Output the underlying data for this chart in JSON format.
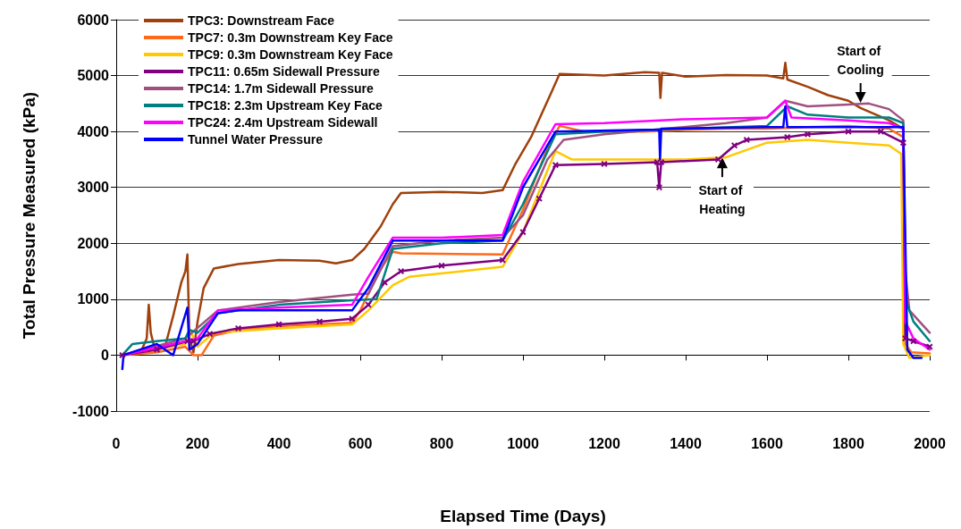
{
  "chart_data": {
    "type": "line",
    "xlabel": "Elapsed Time (Days)",
    "ylabel": "Total Pressure Measured (kPa)",
    "xlim": [
      0,
      2000
    ],
    "xticks": [
      0,
      200,
      400,
      600,
      800,
      1000,
      1200,
      1400,
      1600,
      1800,
      2000
    ],
    "ylim": [
      -1000,
      6000
    ],
    "yticks": [
      -1000,
      0,
      1000,
      2000,
      3000,
      4000,
      5000,
      6000
    ],
    "grid": "y",
    "legend": "top left",
    "marker": "none",
    "line_style": "solid",
    "annotations": [
      {
        "text": "Start of Cooling",
        "x": 1830,
        "y": 4450
      },
      {
        "text": "Start of Heating",
        "x": 1490,
        "y": 3600
      }
    ],
    "series": [
      {
        "name": "TPC3: Downstream Face",
        "color": "#a0400c",
        "x": [
          15,
          60,
          75,
          80,
          85,
          95,
          120,
          140,
          160,
          170,
          175,
          180,
          190,
          200,
          215,
          240,
          300,
          400,
          500,
          540,
          580,
          610,
          650,
          680,
          700,
          800,
          900,
          950,
          980,
          1020,
          1070,
          1090,
          1200,
          1300,
          1335,
          1338,
          1342,
          1400,
          1500,
          1600,
          1640,
          1645,
          1650,
          1700,
          1750,
          1800,
          1830,
          1900,
          1935
        ],
        "values": [
          0,
          50,
          300,
          900,
          400,
          100,
          150,
          700,
          1300,
          1500,
          1800,
          300,
          50,
          600,
          1200,
          1550,
          1630,
          1700,
          1690,
          1640,
          1700,
          1900,
          2300,
          2700,
          2900,
          2920,
          2900,
          2950,
          3400,
          3900,
          4700,
          5030,
          5000,
          5060,
          5050,
          4600,
          5050,
          4980,
          5010,
          5000,
          4950,
          5230,
          4930,
          4800,
          4650,
          4550,
          4420,
          4200,
          4050
        ]
      },
      {
        "name": "TPC7: 0.3m Downstream Key Face",
        "color": "#ff6a1a",
        "x": [
          15,
          100,
          170,
          190,
          210,
          240,
          300,
          400,
          500,
          580,
          600,
          650,
          680,
          700,
          950,
          1000,
          1060,
          1090,
          1150,
          1300,
          1400,
          1500,
          1600,
          1700,
          1800,
          1900,
          1935,
          1940,
          1955,
          2000
        ],
        "values": [
          0,
          50,
          150,
          0,
          0,
          350,
          450,
          520,
          550,
          580,
          800,
          1550,
          1850,
          1820,
          1800,
          2600,
          3700,
          4100,
          4000,
          4000,
          4030,
          4050,
          4050,
          4080,
          4100,
          4050,
          3900,
          200,
          50,
          30
        ]
      },
      {
        "name": "TPC9: 0.3m Downstream Key Face",
        "color": "#ffc800",
        "x": [
          15,
          170,
          185,
          200,
          240,
          300,
          400,
          500,
          580,
          620,
          680,
          720,
          950,
          1000,
          1060,
          1080,
          1120,
          1300,
          1400,
          1500,
          1600,
          1700,
          1800,
          1900,
          1930,
          1935,
          1950,
          2000
        ],
        "values": [
          0,
          200,
          400,
          150,
          400,
          430,
          480,
          520,
          550,
          800,
          1250,
          1400,
          1580,
          2200,
          3300,
          3650,
          3500,
          3500,
          3500,
          3540,
          3800,
          3850,
          3800,
          3750,
          3600,
          200,
          -50,
          0
        ]
      },
      {
        "name": "TPC11: 0.65m Sidewall Pressure",
        "color": "#800080",
        "marker": "cross",
        "x": [
          15,
          100,
          175,
          190,
          230,
          300,
          400,
          500,
          580,
          620,
          660,
          700,
          800,
          950,
          1000,
          1040,
          1080,
          1200,
          1330,
          1335,
          1340,
          1480,
          1520,
          1550,
          1650,
          1700,
          1800,
          1880,
          1935,
          1940,
          1960,
          2000
        ],
        "values": [
          0,
          100,
          250,
          250,
          380,
          480,
          550,
          600,
          650,
          900,
          1300,
          1500,
          1600,
          1700,
          2200,
          2800,
          3400,
          3420,
          3450,
          3000,
          3450,
          3500,
          3750,
          3850,
          3900,
          3950,
          4000,
          4000,
          3800,
          300,
          250,
          150
        ]
      },
      {
        "name": "TPC14: 1.7m Sidewall Pressure",
        "color": "#a05080",
        "x": [
          15,
          170,
          250,
          400,
          580,
          620,
          680,
          800,
          950,
          1000,
          1060,
          1100,
          1200,
          1350,
          1500,
          1600,
          1645,
          1700,
          1800,
          1850,
          1900,
          1935,
          1940,
          1950,
          2000
        ],
        "values": [
          0,
          300,
          800,
          950,
          1080,
          1100,
          1950,
          2050,
          2100,
          2500,
          3500,
          3850,
          3950,
          4050,
          4150,
          4250,
          4550,
          4450,
          4480,
          4500,
          4400,
          4200,
          1500,
          800,
          400
        ]
      },
      {
        "name": "TPC18: 2.3m Upstream Key Face",
        "color": "#008080",
        "x": [
          15,
          40,
          100,
          140,
          170,
          180,
          200,
          250,
          400,
          580,
          640,
          680,
          800,
          950,
          1000,
          1080,
          1200,
          1400,
          1600,
          1650,
          1700,
          1800,
          1900,
          1935,
          1940,
          1960,
          2000
        ],
        "values": [
          0,
          200,
          250,
          280,
          300,
          450,
          400,
          750,
          900,
          980,
          1000,
          1900,
          2000,
          2050,
          2700,
          3950,
          4000,
          4050,
          4100,
          4450,
          4300,
          4250,
          4250,
          4150,
          1000,
          600,
          250
        ]
      },
      {
        "name": "TPC24: 2.4m Upstream Sidewall",
        "color": "#ff00ff",
        "x": [
          15,
          170,
          200,
          250,
          400,
          580,
          620,
          680,
          800,
          950,
          1000,
          1080,
          1200,
          1400,
          1600,
          1645,
          1660,
          1800,
          1900,
          1935,
          1940,
          1960,
          2000
        ],
        "values": [
          0,
          250,
          300,
          800,
          850,
          900,
          1400,
          2100,
          2100,
          2150,
          3100,
          4130,
          4150,
          4220,
          4250,
          4550,
          4250,
          4200,
          4150,
          4050,
          600,
          300,
          100
        ]
      },
      {
        "name": "Tunnel Water Pressure",
        "color": "#0000ff",
        "x": [
          15,
          18,
          100,
          140,
          175,
          180,
          200,
          250,
          300,
          580,
          620,
          680,
          800,
          950,
          1000,
          1080,
          1300,
          1335,
          1337,
          1340,
          1600,
          1640,
          1645,
          1650,
          1935,
          1945,
          1960,
          1980
        ],
        "values": [
          -250,
          0,
          200,
          0,
          850,
          100,
          200,
          750,
          800,
          800,
          1200,
          2050,
          2050,
          2050,
          3000,
          4000,
          4030,
          4030,
          3500,
          4050,
          4080,
          4080,
          4450,
          4080,
          4080,
          100,
          -50,
          -50
        ]
      }
    ]
  }
}
